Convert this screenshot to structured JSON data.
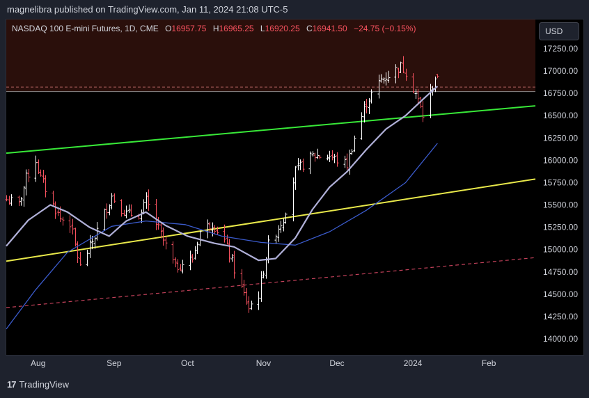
{
  "publisher_line": "magnelibra published on TradingView.com, Jan 11, 2024 21:08 UTC-5",
  "legend": {
    "symbol": "NASDAQ 100 E-mini Futures, 1D, CME",
    "o_label": "O",
    "o_value": "16957.75",
    "h_label": "H",
    "h_value": "16965.25",
    "l_label": "L",
    "l_value": "16920.25",
    "c_label": "C",
    "c_value": "16941.50",
    "change": "−24.75 (−0.15%)"
  },
  "currency": "USD",
  "footer": {
    "logo": "17",
    "brand": "TradingView"
  },
  "colors": {
    "background": "#000000",
    "up": "#ffffff",
    "down": "#f7525f",
    "upper_zone": "#2a0f0b",
    "green_line": "#38e838",
    "yellow_line": "#e8e84a",
    "ma_fast": "#b0b0d8",
    "ma_slow": "#3b5bcc",
    "dashed_red": "#c2415a"
  },
  "chart_data": {
    "type": "candlestick",
    "title": "NASDAQ 100 E-mini Futures, 1D, CME",
    "ylim": [
      13870,
      17350
    ],
    "y_ticks": [
      14000,
      14250,
      14500,
      14750,
      15000,
      15250,
      15500,
      15750,
      16000,
      16250,
      16500,
      16750,
      17000,
      17250
    ],
    "y_tick_labels": [
      "14000.00",
      "14250.00",
      "14500.00",
      "14750.00",
      "15000.00",
      "15250.00",
      "15500.00",
      "15750.00",
      "16000.00",
      "16250.00",
      "16500.00",
      "16750.00",
      "17000.00",
      "17250.00"
    ],
    "x_start_date": "2023-07-19",
    "x_end_date": "2024-02-20",
    "x_ticks": [
      {
        "date": "2023-08-01",
        "label": "Aug"
      },
      {
        "date": "2023-09-01",
        "label": "Sep"
      },
      {
        "date": "2023-10-01",
        "label": "Oct"
      },
      {
        "date": "2023-11-01",
        "label": "Nov"
      },
      {
        "date": "2023-12-01",
        "label": "Dec"
      },
      {
        "date": "2024-01-01",
        "label": "2024"
      },
      {
        "date": "2024-02-01",
        "label": "Feb"
      }
    ],
    "ohlc_anchors": [
      [
        "2023-07-19",
        15560
      ],
      [
        "2023-07-24",
        15500
      ],
      [
        "2023-07-27",
        15800
      ],
      [
        "2023-07-31",
        16000
      ],
      [
        "2023-08-02",
        15800
      ],
      [
        "2023-08-07",
        15500
      ],
      [
        "2023-08-10",
        15350
      ],
      [
        "2023-08-14",
        15300
      ],
      [
        "2023-08-18",
        14800
      ],
      [
        "2023-08-24",
        15150
      ],
      [
        "2023-08-31",
        15600
      ],
      [
        "2023-09-06",
        15400
      ],
      [
        "2023-09-12",
        15400
      ],
      [
        "2023-09-14",
        15550
      ],
      [
        "2023-09-21",
        15100
      ],
      [
        "2023-09-26",
        14800
      ],
      [
        "2023-10-03",
        14900
      ],
      [
        "2023-10-06",
        15200
      ],
      [
        "2023-10-11",
        15300
      ],
      [
        "2023-10-16",
        15100
      ],
      [
        "2023-10-20",
        14780
      ],
      [
        "2023-10-26",
        14350
      ],
      [
        "2023-10-30",
        14500
      ],
      [
        "2023-11-03",
        15050
      ],
      [
        "2023-11-09",
        15350
      ],
      [
        "2023-11-14",
        15880
      ],
      [
        "2023-11-21",
        16050
      ],
      [
        "2023-11-28",
        16050
      ],
      [
        "2023-12-01",
        16000
      ],
      [
        "2023-12-05",
        15950
      ],
      [
        "2023-12-08",
        16250
      ],
      [
        "2023-12-13",
        16650
      ],
      [
        "2023-12-19",
        16900
      ],
      [
        "2023-12-27",
        17050
      ],
      [
        "2023-12-29",
        17000
      ],
      [
        "2024-01-02",
        16750
      ],
      [
        "2024-01-05",
        16500
      ],
      [
        "2024-01-08",
        16750
      ],
      [
        "2024-01-10",
        16930
      ],
      [
        "2024-01-11",
        16941.5
      ]
    ],
    "last_close": 16941.5,
    "overlays": {
      "green_channel": [
        {
          "date": "2023-07-19",
          "y": 16080
        },
        {
          "date": "2024-02-20",
          "y": 16610
        }
      ],
      "yellow_channel": [
        {
          "date": "2023-07-19",
          "y": 14870
        },
        {
          "date": "2024-02-20",
          "y": 15790
        }
      ],
      "dashed_lower": [
        {
          "date": "2023-07-19",
          "y": 14350
        },
        {
          "date": "2024-02-20",
          "y": 14910
        }
      ],
      "dashed_upper_y": 16820,
      "upper_zone_bottom": 16770,
      "ma_fast": [
        [
          "2023-07-19",
          15040
        ],
        [
          "2023-07-28",
          15330
        ],
        [
          "2023-08-06",
          15500
        ],
        [
          "2023-08-13",
          15420
        ],
        [
          "2023-08-22",
          15250
        ],
        [
          "2023-08-30",
          15150
        ],
        [
          "2023-09-06",
          15320
        ],
        [
          "2023-09-14",
          15420
        ],
        [
          "2023-09-22",
          15270
        ],
        [
          "2023-10-01",
          15150
        ],
        [
          "2023-10-12",
          15070
        ],
        [
          "2023-10-20",
          15030
        ],
        [
          "2023-10-30",
          14880
        ],
        [
          "2023-11-06",
          14900
        ],
        [
          "2023-11-14",
          15130
        ],
        [
          "2023-11-21",
          15450
        ],
        [
          "2023-11-28",
          15700
        ],
        [
          "2023-12-05",
          15870
        ],
        [
          "2023-12-13",
          16120
        ],
        [
          "2023-12-21",
          16350
        ],
        [
          "2023-12-29",
          16500
        ],
        [
          "2024-01-05",
          16680
        ],
        [
          "2024-01-11",
          16830
        ]
      ],
      "ma_slow": [
        [
          "2023-07-19",
          14110
        ],
        [
          "2023-07-31",
          14550
        ],
        [
          "2023-08-13",
          14970
        ],
        [
          "2023-08-31",
          15260
        ],
        [
          "2023-09-14",
          15320
        ],
        [
          "2023-09-30",
          15280
        ],
        [
          "2023-10-15",
          15150
        ],
        [
          "2023-10-31",
          15080
        ],
        [
          "2023-11-14",
          15050
        ],
        [
          "2023-11-28",
          15200
        ],
        [
          "2023-12-13",
          15440
        ],
        [
          "2023-12-29",
          15750
        ],
        [
          "2024-01-11",
          16190
        ]
      ]
    }
  }
}
